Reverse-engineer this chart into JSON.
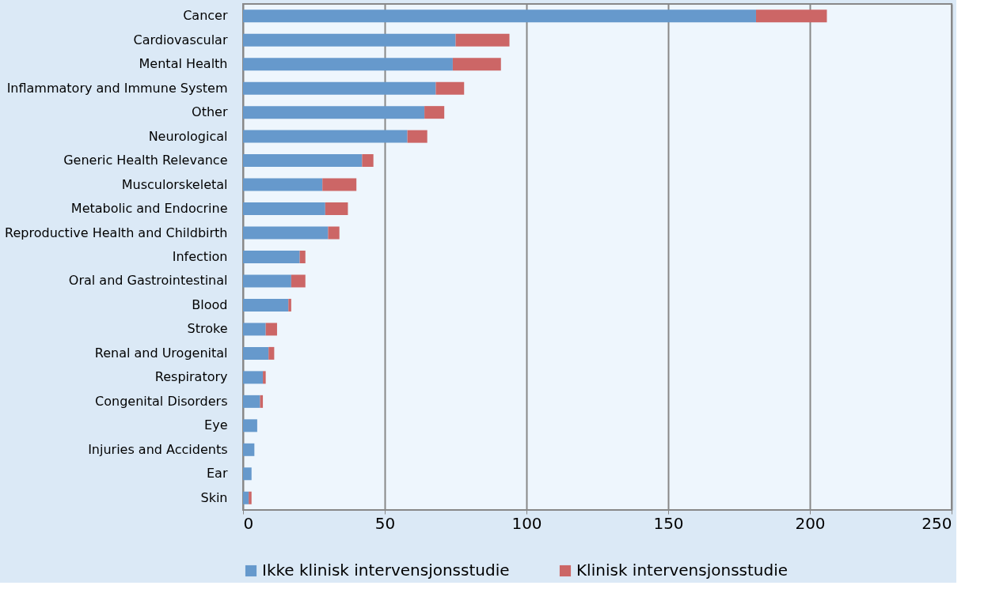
{
  "chart_data": {
    "type": "bar",
    "orientation": "horizontal",
    "stacked": true,
    "categories": [
      "Cancer",
      "Cardiovascular",
      "Mental Health",
      "Inflammatory and Immune System",
      "Other",
      "Neurological",
      "Generic Health Relevance",
      "Musculorskeletal",
      "Metabolic and Endocrine",
      "Reproductive Health and Childbirth",
      "Infection",
      "Oral and Gastrointestinal",
      "Blood",
      "Stroke",
      "Renal and Urogenital",
      "Respiratory",
      "Congenital Disorders",
      "Eye",
      "Injuries and Accidents",
      "Ear",
      "Skin"
    ],
    "series": [
      {
        "name": "Ikke klinisk intervensjonsstudie",
        "color": "#6699cc",
        "values": [
          181,
          75,
          74,
          68,
          64,
          58,
          42,
          28,
          29,
          30,
          20,
          17,
          16,
          8,
          9,
          7,
          6,
          5,
          4,
          3,
          2
        ]
      },
      {
        "name": "Klinisk intervensjonsstudie",
        "color": "#cc6666",
        "values": [
          25,
          19,
          17,
          10,
          7,
          7,
          4,
          12,
          8,
          4,
          2,
          5,
          1,
          4,
          2,
          1,
          1,
          0,
          0,
          0,
          1
        ]
      }
    ],
    "xlim": [
      0,
      250
    ],
    "xticks": [
      0,
      50,
      100,
      150,
      200,
      250
    ],
    "grid": "x",
    "legend": "bottom"
  }
}
